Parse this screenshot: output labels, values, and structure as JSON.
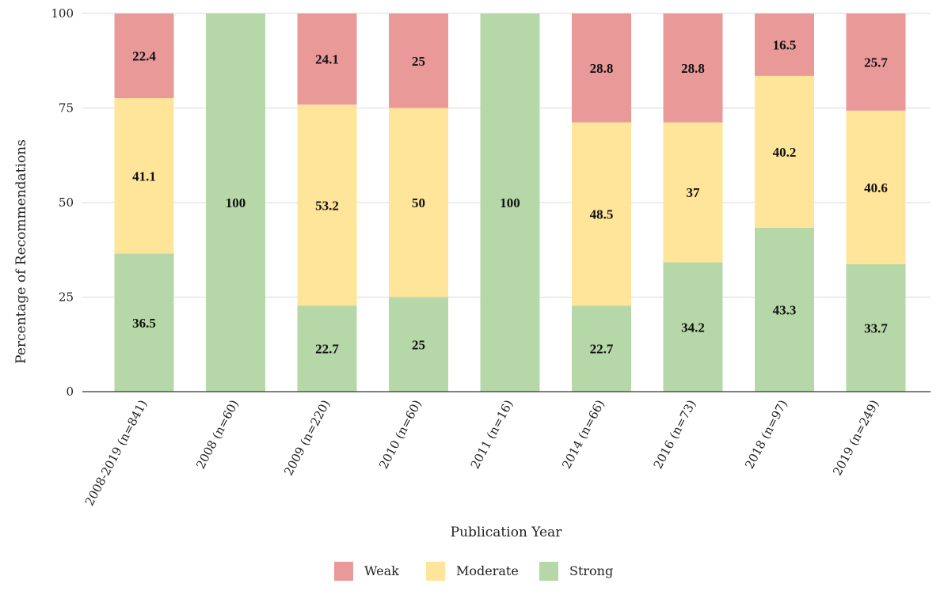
{
  "chart_data": {
    "type": "bar",
    "stacked": true,
    "title": "",
    "xlabel": "Publication Year",
    "ylabel": "Percentage of Recommendations",
    "ylim": [
      0,
      100
    ],
    "yticks": [
      0,
      25,
      50,
      75,
      100
    ],
    "grid": true,
    "legend_position": "bottom",
    "categories": [
      "2008-2019 (n=841)",
      "2008 (n=60)",
      "2009 (n=220)",
      "2010 (n=60)",
      "2011 (n=16)",
      "2014 (n=66)",
      "2016 (n=73)",
      "2018 (n=97)",
      "2019 (n=249)"
    ],
    "series": [
      {
        "name": "Strong",
        "color": "#b6d7a8",
        "values": [
          36.5,
          100,
          22.7,
          25,
          100,
          22.7,
          34.2,
          43.3,
          33.7
        ]
      },
      {
        "name": "Moderate",
        "color": "#ffe599",
        "values": [
          41.1,
          0,
          53.2,
          50,
          0,
          48.5,
          37,
          40.2,
          40.6
        ]
      },
      {
        "name": "Weak",
        "color": "#ea9999",
        "values": [
          22.4,
          0,
          24.1,
          25,
          0,
          28.8,
          28.8,
          16.5,
          25.7
        ]
      }
    ],
    "legend_order": [
      "Weak",
      "Moderate",
      "Strong"
    ]
  }
}
